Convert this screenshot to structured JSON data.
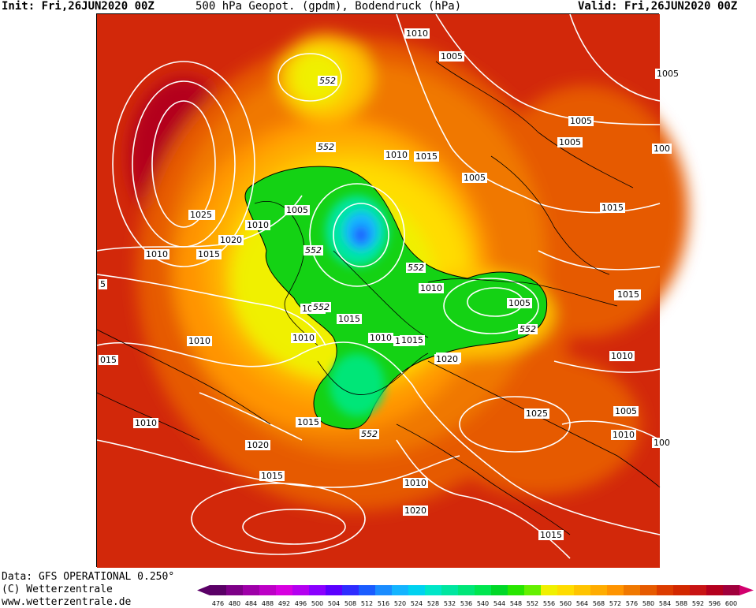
{
  "header": {
    "init": "Init: Fri,26JUN2020 00Z",
    "title": "500 hPa Geopot. (gpdm), Bodendruck (hPa)",
    "valid": "Valid: Fri,26JUN2020 00Z"
  },
  "footer": {
    "data_source": "Data: GFS OPERATIONAL 0.250°",
    "copyright": "(C) Wetterzentrale",
    "website": "www.wetterzentrale.de"
  },
  "legend": {
    "values": [
      "476",
      "480",
      "484",
      "488",
      "492",
      "496",
      "500",
      "504",
      "508",
      "512",
      "516",
      "520",
      "524",
      "528",
      "532",
      "536",
      "540",
      "544",
      "548",
      "552",
      "556",
      "560",
      "564",
      "568",
      "572",
      "576",
      "580",
      "584",
      "588",
      "592",
      "596",
      "600"
    ],
    "colors": [
      "#5a0066",
      "#7d0087",
      "#9e00a8",
      "#bd00c6",
      "#d700e0",
      "#b400f0",
      "#8a00ff",
      "#5a00ff",
      "#2e2cff",
      "#1a5cff",
      "#1a8cff",
      "#14b4ff",
      "#00d2f0",
      "#00e6c8",
      "#00e6a0",
      "#00e678",
      "#00e650",
      "#00d828",
      "#28e600",
      "#64f000",
      "#f0f000",
      "#ffdc00",
      "#ffc400",
      "#ffac00",
      "#ff9400",
      "#f07800",
      "#e65a00",
      "#dc3c00",
      "#d22800",
      "#c81414",
      "#b4001e",
      "#a0003c"
    ]
  },
  "map": {
    "geopotential_labels": [
      {
        "text": "552",
        "kind": "gpdm"
      },
      {
        "text": "552",
        "kind": "gpdm"
      },
      {
        "text": "552",
        "kind": "gpdm"
      },
      {
        "text": "552",
        "kind": "gpdm"
      },
      {
        "text": "552",
        "kind": "gpdm"
      },
      {
        "text": "552",
        "kind": "gpdm"
      },
      {
        "text": "552",
        "kind": "gpdm"
      }
    ],
    "pressure_labels": [
      "1010",
      "1005",
      "1005",
      "1005",
      "1005",
      "1010",
      "1015",
      "1005",
      "1015",
      "1005",
      "1005",
      "1025",
      "1010",
      "1020",
      "1010",
      "1015",
      "1005",
      "1010",
      "1005",
      "1015",
      "1010",
      "1010",
      "1015",
      "1020",
      "1010",
      "1005",
      "1010",
      "1015",
      "1020",
      "1015",
      "1025",
      "1005",
      "1010",
      "1010",
      "1015",
      "1020",
      "1015",
      "1010",
      "1020",
      "1015",
      "100",
      "100",
      "5",
      "015"
    ]
  }
}
